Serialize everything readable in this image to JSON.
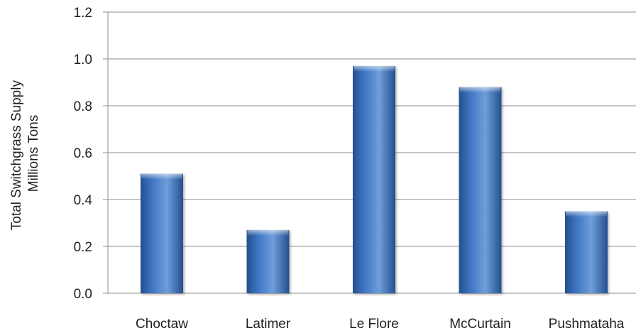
{
  "chart_data": {
    "type": "bar",
    "categories": [
      "Choctaw",
      "Latimer",
      "Le Flore",
      "McCurtain",
      "Pushmataha"
    ],
    "values": [
      0.51,
      0.27,
      0.97,
      0.88,
      0.35
    ],
    "title": "",
    "xlabel": "",
    "ylabel": [
      "Total Switchgrass Supply",
      "Millions Tons"
    ],
    "ylim": [
      0,
      1.2
    ],
    "yticks": [
      "0.0",
      "0.2",
      "0.4",
      "0.6",
      "0.8",
      "1.0",
      "1.2"
    ],
    "grid": true,
    "legend": "none",
    "colors": {
      "bar_light": "#6f9edb",
      "bar_mid": "#3f77c4",
      "bar_dark": "#244f8e",
      "grid": "#8c8c8c",
      "axis": "#8c8c8c"
    }
  }
}
